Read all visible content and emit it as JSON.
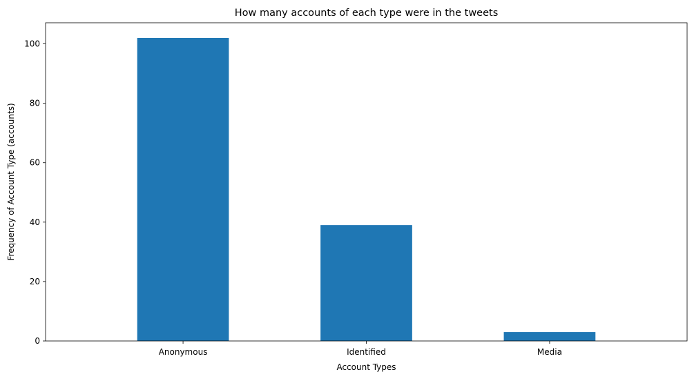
{
  "chart_data": {
    "type": "bar",
    "title": "How many accounts of each type were in the tweets",
    "xlabel": "Account Types",
    "ylabel": "Frequency of Account Type (accounts)",
    "categories": [
      "Anonymous",
      "Identified",
      "Media"
    ],
    "values": [
      102,
      39,
      3
    ],
    "ylim": [
      0,
      107.1
    ],
    "yticks": [
      0,
      20,
      40,
      60,
      80,
      100
    ],
    "grid": false,
    "bar_color": "#1f77b4"
  }
}
